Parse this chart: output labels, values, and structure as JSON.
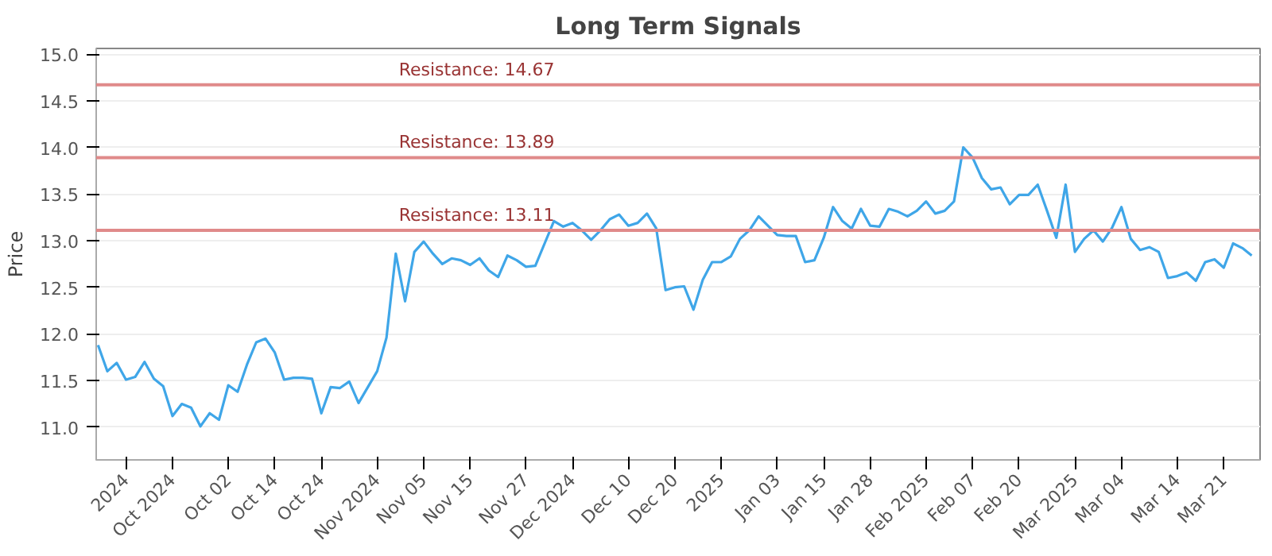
{
  "chart_data": {
    "type": "line",
    "title": "Long Term Signals",
    "ylabel": "Price",
    "categories": [
      null,
      null,
      null,
      "2024",
      null,
      null,
      null,
      null,
      "Oct 2024",
      null,
      null,
      null,
      null,
      null,
      "Oct 02",
      null,
      null,
      null,
      null,
      "Oct 14",
      null,
      null,
      null,
      null,
      "Oct 24",
      null,
      null,
      null,
      null,
      null,
      "Nov 2024",
      null,
      null,
      null,
      null,
      "Nov 05",
      null,
      null,
      null,
      null,
      "Nov 15",
      null,
      null,
      null,
      null,
      null,
      "Nov 27",
      null,
      null,
      null,
      null,
      "Dec 2024",
      null,
      null,
      null,
      null,
      null,
      "Dec 10",
      null,
      null,
      null,
      null,
      "Dec 20",
      null,
      null,
      null,
      null,
      "2025",
      null,
      null,
      null,
      null,
      null,
      "Jan 03",
      null,
      null,
      null,
      null,
      "Jan 15",
      null,
      null,
      null,
      null,
      "Jan 28",
      null,
      null,
      null,
      null,
      null,
      "Feb 2025",
      null,
      null,
      null,
      null,
      "Feb 07",
      null,
      null,
      null,
      null,
      "Feb 20",
      null,
      null,
      null,
      null,
      null,
      "Mar 2025",
      null,
      null,
      null,
      null,
      "Mar 04",
      null,
      null,
      null,
      null,
      null,
      "Mar 14",
      null,
      null,
      null,
      null,
      "Mar 21",
      null,
      null,
      null
    ],
    "series": [
      {
        "color": "#3fa6e8",
        "values": [
          11.88,
          11.6,
          11.69,
          11.51,
          11.54,
          11.7,
          11.52,
          11.44,
          11.12,
          11.25,
          11.21,
          11.01,
          11.15,
          11.08,
          11.45,
          11.38,
          11.67,
          11.91,
          11.95,
          11.8,
          11.51,
          11.53,
          11.53,
          11.52,
          11.15,
          11.43,
          11.42,
          11.49,
          11.26,
          11.43,
          11.6,
          11.96,
          12.86,
          12.35,
          12.88,
          12.99,
          12.86,
          12.75,
          12.81,
          12.79,
          12.74,
          12.81,
          12.68,
          12.61,
          12.84,
          12.79,
          12.72,
          12.73,
          12.97,
          13.21,
          13.15,
          13.19,
          13.11,
          13.01,
          13.11,
          13.23,
          13.28,
          13.16,
          13.19,
          13.29,
          13.13,
          12.47,
          12.5,
          12.51,
          12.26,
          12.58,
          12.77,
          12.77,
          12.83,
          13.02,
          13.11,
          13.26,
          13.16,
          13.06,
          13.05,
          13.05,
          12.77,
          12.79,
          13.03,
          13.36,
          13.21,
          13.13,
          13.34,
          13.16,
          13.15,
          13.34,
          13.31,
          13.26,
          13.32,
          13.42,
          13.29,
          13.32,
          13.42,
          14.0,
          13.89,
          13.67,
          13.55,
          13.57,
          13.39,
          13.49,
          13.49,
          13.6,
          13.32,
          13.03,
          13.6,
          12.88,
          13.02,
          13.11,
          12.99,
          13.14,
          13.36,
          13.02,
          12.9,
          12.93,
          12.88,
          12.6,
          12.62,
          12.66,
          12.57,
          12.77,
          12.8,
          12.71,
          12.97,
          12.92,
          12.84
        ]
      }
    ],
    "ylim": [
      10.65,
      15.06
    ],
    "yticks": [
      {
        "value": 11,
        "label": "11.0"
      },
      {
        "value": 11.5,
        "label": "11.5"
      },
      {
        "value": 12,
        "label": "12.0"
      },
      {
        "value": 12.5,
        "label": "12.5"
      },
      {
        "value": 13,
        "label": "13.0"
      },
      {
        "value": 13.5,
        "label": "13.5"
      },
      {
        "value": 14,
        "label": "14.0"
      },
      {
        "value": 14.5,
        "label": "14.5"
      },
      {
        "value": 15,
        "label": "15.0"
      }
    ],
    "grid": "y",
    "marker": "none",
    "line_style": "solid",
    "ref_lines": [
      {
        "axis": "y",
        "value": 14.67,
        "label": "Resistance: 14.67",
        "color": "#e08a8a"
      },
      {
        "axis": "y",
        "value": 13.89,
        "label": "Resistance: 13.89",
        "color": "#e08a8a"
      },
      {
        "axis": "y",
        "value": 13.11,
        "label": "Resistance: 13.11",
        "color": "#e08a8a"
      }
    ]
  }
}
